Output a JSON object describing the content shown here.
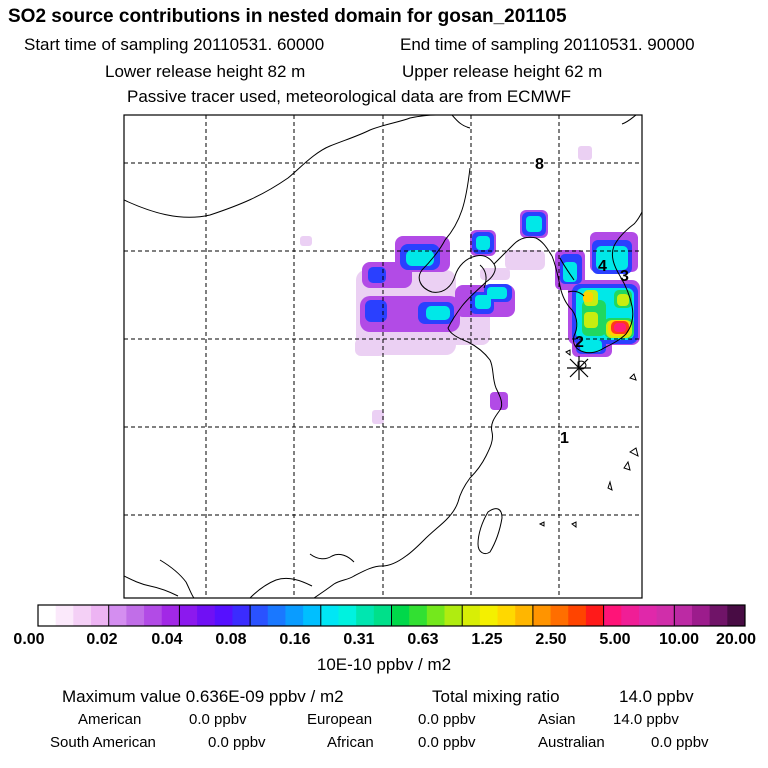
{
  "header": {
    "title": "SO2 source contributions in nested domain for gosan_201105",
    "start_label": "Start time of sampling 20110531. 60000",
    "end_label": "End time of sampling 20110531. 90000",
    "lower_release": "Lower release height   82 m",
    "upper_release": "Upper release height   62 m",
    "tracer_note": "Passive tracer used, meteorological data are from ECMWF"
  },
  "map": {
    "day_markers": [
      "8",
      "4",
      "3",
      "2",
      "1"
    ],
    "receptor_symbol": "asterisk",
    "land_color": "#ffffff",
    "gridline_style": "dashed"
  },
  "colorbar": {
    "tick_labels": [
      "0.00",
      "0.02",
      "0.04",
      "0.08",
      "0.16",
      "0.31",
      "0.63",
      "1.25",
      "2.50",
      "5.00",
      "10.00",
      "20.00"
    ],
    "colors": [
      "#ffffff",
      "#fbe9fb",
      "#f4d0f6",
      "#edb4f3",
      "#d48ef0",
      "#c16ee8",
      "#b24be6",
      "#a228e6",
      "#8c19ee",
      "#7010f4",
      "#5610ff",
      "#3b2cff",
      "#2a52ff",
      "#1a78ff",
      "#0a9cff",
      "#00bfff",
      "#00e6f5",
      "#00f2df",
      "#00e6b0",
      "#00e08a",
      "#00d84a",
      "#32e032",
      "#74e81c",
      "#b0ec10",
      "#d8ee06",
      "#f4f000",
      "#ffd800",
      "#ffb600",
      "#ff9400",
      "#ff6e00",
      "#ff4400",
      "#ff1a1a",
      "#ff1478",
      "#f01e96",
      "#e028aa",
      "#d02eaa",
      "#bc2aa4",
      "#9c1c8c",
      "#701468",
      "#480c44"
    ],
    "unit": "10E-10 ppbv / m2"
  },
  "summary": {
    "max_value": "Maximum value  0.636E-09 ppbv / m2",
    "total_mixing": "Total mixing ratio",
    "total_value": "14.0 ppbv",
    "american_label": "American",
    "american_value": "0.0 ppbv",
    "european_label": "European",
    "european_value": "0.0 ppbv",
    "asian_label": "Asian",
    "asian_value": "14.0 ppbv",
    "south_american_label": "South American",
    "south_american_value": "0.0 ppbv",
    "african_label": "African",
    "african_value": "0.0 ppbv",
    "australian_label": "Australian",
    "australian_value": "0.0 ppbv"
  }
}
